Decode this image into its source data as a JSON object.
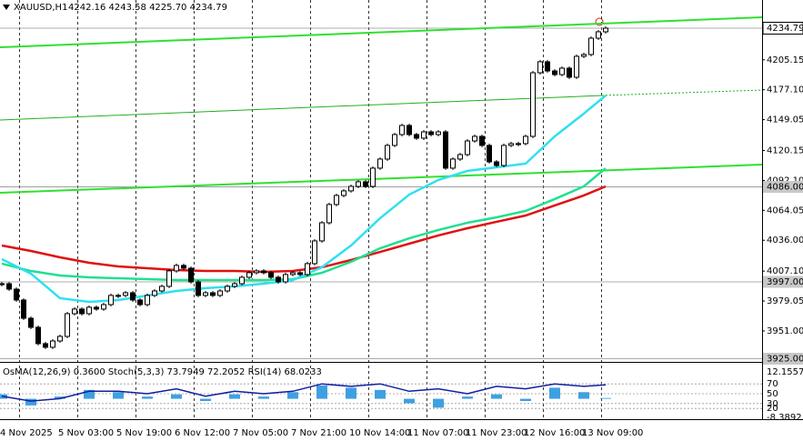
{
  "header": {
    "symbol": "XAUUSD,H1",
    "ohlc": "4242.16 4243.58 4225.70 4234.79"
  },
  "chart_data": {
    "type": "candlestick",
    "close": [
      3995.3,
      3990.2,
      3980.0,
      3962.9,
      3954.4,
      3939.1,
      3935.7,
      3941.6,
      3945.9,
      3967.2,
      3971.5,
      3967.2,
      3973.2,
      3971.5,
      3975.7,
      3984.3,
      3984.3,
      3986.8,
      3980.0,
      3975.7,
      3984.3,
      3988.5,
      3992.8,
      4007.3,
      4012.4,
      4009.8,
      3997.0,
      3984.3,
      3986.8,
      3984.3,
      3988.5,
      3992.8,
      3995.3,
      4001.3,
      4005.6,
      4007.3,
      4005.6,
      4001.3,
      3997.0,
      4003.9,
      4005.6,
      4003.9,
      4014.1,
      4035.4,
      4052.4,
      4069.5,
      4078.0,
      4082.3,
      4086.5,
      4090.8,
      4086.5,
      4103.6,
      4112.1,
      4124.9,
      4135.1,
      4143.6,
      4135.1,
      4131.7,
      4137.6,
      4135.1,
      4137.6,
      4103.6,
      4112.1,
      4116.3,
      4129.1,
      4133.4,
      4124.9,
      4109.5,
      4106.1,
      4124.9,
      4126.6,
      4126.6,
      4133.4,
      4193.0,
      4203.3,
      4194.7,
      4191.3,
      4197.3,
      4188.8,
      4208.4,
      4210.1,
      4225.4,
      4231.4,
      4234.79
    ],
    "ylim": [
      3922,
      4261.2
    ],
    "yticks": [
      4205.15,
      {
        "value": 4177.1,
        "label": "4177.10"
      },
      4149.05,
      4120.15,
      {
        "value": 4092.1,
        "label": "4092.10"
      },
      4064.05,
      {
        "value": 4036,
        "label": "4036.00"
      },
      {
        "value": 4007.1,
        "label": "4007.10"
      },
      3979.05,
      {
        "value": 3951,
        "label": "3951.00"
      }
    ],
    "price_lines": [
      4234.79,
      {
        "value": 4086,
        "label": "4086.00"
      },
      {
        "value": 3997,
        "label": "3997.00"
      },
      {
        "value": 3925,
        "label": "3925.00"
      }
    ],
    "x_labels": [
      "4 Nov 2025",
      "5 Nov 03:00",
      "5 Nov 19:00",
      "6 Nov 12:00",
      "7 Nov 05:00",
      "7 Nov 21:00",
      "10 Nov 14:00",
      "11 Nov 07:00",
      "11 Nov 23:00",
      "12 Nov 16:00",
      "13 Nov 09:00"
    ],
    "ma_x": [
      0,
      4,
      8,
      12,
      16,
      20,
      24,
      28,
      32,
      36,
      40,
      44,
      48,
      52,
      56,
      60,
      64,
      68,
      72,
      76,
      80,
      83
    ],
    "moving_averages": [
      {
        "color": "#e01010",
        "values": [
          4031.1,
          4026.0,
          4020.0,
          4014.9,
          4011.5,
          4009.8,
          4008.1,
          4007.2,
          4007.2,
          4006.4,
          4007.2,
          4010.7,
          4017.5,
          4025.1,
          4032.8,
          4040.5,
          4047.3,
          4053.3,
          4059.2,
          4068.6,
          4078.0,
          4086.5
        ]
      },
      {
        "color": "#20e090",
        "values": [
          4014.1,
          4007.2,
          4003.0,
          4001.3,
          4000.4,
          3999.6,
          3998.7,
          3998.7,
          3998.7,
          3998.7,
          3999.6,
          4005.5,
          4015.8,
          4028.5,
          4037.9,
          4045.6,
          4052.4,
          4057.5,
          4063.5,
          4074.6,
          4086.5,
          4103.5
        ]
      },
      {
        "color": "#30e0f0",
        "values": [
          4018.3,
          4004.7,
          3981.7,
          3978.3,
          3980.0,
          3984.2,
          3988.5,
          3991.1,
          3992.8,
          3995.3,
          3998.7,
          4010.7,
          4031.1,
          4056.7,
          4078.8,
          4092.5,
          4101.0,
          4104.4,
          4107.8,
          4133.4,
          4154.7,
          4171.7
        ]
      }
    ],
    "trend_lines": [
      {
        "color": "#30e030",
        "points": [
          [
            0,
            4216.9
          ],
          [
            104.75,
            4245.0
          ]
        ]
      },
      {
        "color": "#20b020",
        "points": [
          [
            0,
            4148.7
          ],
          [
            82.75,
            4171.7
          ],
          [
            104.75,
            4176.8
          ]
        ],
        "dashed_from": 1
      },
      {
        "color": "#30e030",
        "points": [
          [
            0,
            4080.5
          ],
          [
            104.75,
            4106.9
          ]
        ]
      }
    ],
    "indicator": {
      "title": "OsMA(12,26,9) 0.3600  Stoch(5,3,3) 73.7949 72.2052  RSI(14) 68.0233",
      "osma_lim": [
        -8.3892,
        12.1557
      ],
      "osma_ticks": [
        12.1557,
        -8.3892
      ],
      "levels": [
        70,
        50,
        30,
        20
      ],
      "level_lim": [
        0,
        100
      ],
      "osma": [
        2,
        -3,
        1,
        4,
        3,
        1,
        2,
        -1,
        2,
        1,
        3,
        6,
        5,
        4,
        -2,
        -4,
        1,
        2,
        -1,
        5,
        3,
        0.36
      ],
      "rsi": [
        45,
        35,
        40,
        55,
        55,
        50,
        60,
        45,
        55,
        50,
        55,
        70,
        65,
        70,
        55,
        60,
        50,
        65,
        60,
        70,
        65,
        68.0233
      ]
    }
  }
}
